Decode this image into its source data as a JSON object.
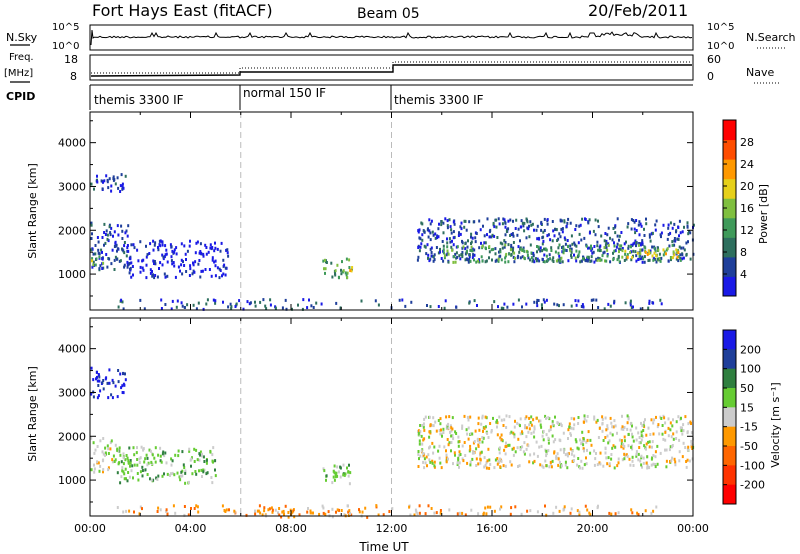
{
  "header": {
    "station": "Fort Hays East (fitACF)",
    "beam": "Beam 05",
    "date": "20/Feb/2011"
  },
  "status_panels": {
    "nsky_label": "N.Sky",
    "nsky_ticks": [
      "10^5",
      "10^0"
    ],
    "nsearch_label": "N.Search",
    "nsearch_ticks": [
      "10^5",
      "10^0"
    ],
    "freq_label": "Freq.",
    "freq_unit": "[MHz]",
    "freq_ticks": [
      "18",
      "8"
    ],
    "nave_label": "Nave",
    "nave_ticks": [
      "60",
      "0"
    ],
    "cpid_label": "CPID",
    "cpid_segments": [
      {
        "label": "themis 3300 IF",
        "start": 0,
        "end": 6
      },
      {
        "label": "normal 150 IF",
        "start": 6,
        "end": 12
      },
      {
        "label": "themis 3300 IF",
        "start": 12,
        "end": 24
      }
    ]
  },
  "chart_data": [
    {
      "type": "heatmap",
      "name": "power",
      "ylabel": "Slant Range [km]",
      "yticks": [
        1000,
        2000,
        3000,
        4000
      ],
      "ylim": [
        180,
        4700
      ],
      "xlim": [
        0,
        24
      ],
      "colorbar": {
        "label": "Power [dB]",
        "ticks": [
          4,
          8,
          12,
          16,
          20,
          24,
          28
        ],
        "range": [
          0,
          32
        ],
        "colors": [
          "#1a1ae6",
          "#1f3f9a",
          "#2e6f5e",
          "#3f9a5a",
          "#7fbf3f",
          "#e6d01a",
          "#ff9900",
          "#ff4d00",
          "#ff0000"
        ]
      },
      "regions": [
        {
          "t0": 0.0,
          "t1": 1.6,
          "r0": 1100,
          "r1": 2200,
          "level": 1
        },
        {
          "t0": 0.0,
          "t1": 0.5,
          "r0": 1200,
          "r1": 1500,
          "level": 4
        },
        {
          "t0": 1.4,
          "t1": 5.5,
          "r0": 950,
          "r1": 1800,
          "level": 0
        },
        {
          "t0": 0.0,
          "t1": 1.4,
          "r0": 2900,
          "r1": 3400,
          "level": 1
        },
        {
          "t0": 9.2,
          "t1": 10.5,
          "r0": 950,
          "r1": 1400,
          "level": 3
        },
        {
          "t0": 9.8,
          "t1": 10.4,
          "r0": 1000,
          "r1": 1200,
          "level": 5
        },
        {
          "t0": 13.0,
          "t1": 24.0,
          "r0": 1300,
          "r1": 2300,
          "level": 1
        },
        {
          "t0": 14.0,
          "t1": 23.5,
          "r0": 1300,
          "r1": 1700,
          "level": 3
        },
        {
          "t0": 21.0,
          "t1": 23.5,
          "r0": 1400,
          "r1": 1600,
          "level": 5
        }
      ]
    },
    {
      "type": "heatmap",
      "name": "velocity",
      "xlabel": "Time UT",
      "ylabel": "Slant Range [km]",
      "yticks": [
        1000,
        2000,
        3000,
        4000
      ],
      "ylim": [
        180,
        4700
      ],
      "xlim": [
        0,
        24
      ],
      "xticks": [
        "00:00",
        "04:00",
        "08:00",
        "12:00",
        "16:00",
        "20:00",
        "00:00"
      ],
      "colorbar": {
        "label": "Velocity [m s⁻¹]",
        "ticks": [
          "200",
          "100",
          "50",
          "15",
          "-15",
          "-50",
          "-100",
          "-200"
        ],
        "colors": [
          "#1a1ae6",
          "#1f3f9a",
          "#2f7f3f",
          "#66cc33",
          "#cccccc",
          "#ff9900",
          "#ff6600",
          "#ff3300",
          "#ff0000"
        ]
      },
      "regions": [
        {
          "t0": 0.0,
          "t1": 1.0,
          "r0": 1200,
          "r1": 2000,
          "level": 4
        },
        {
          "t0": 1.0,
          "t1": 5.0,
          "r0": 950,
          "r1": 1800,
          "level": 3
        },
        {
          "t0": 0.0,
          "t1": 1.4,
          "r0": 2900,
          "r1": 3600,
          "level": 0
        },
        {
          "t0": 9.2,
          "t1": 10.5,
          "r0": 950,
          "r1": 1400,
          "level": 3
        },
        {
          "t0": 13.0,
          "t1": 24.0,
          "r0": 1300,
          "r1": 2500,
          "level": 4
        },
        {
          "t0": 6.5,
          "t1": 11.0,
          "r0": 180,
          "r1": 400,
          "level": 5
        }
      ]
    }
  ]
}
